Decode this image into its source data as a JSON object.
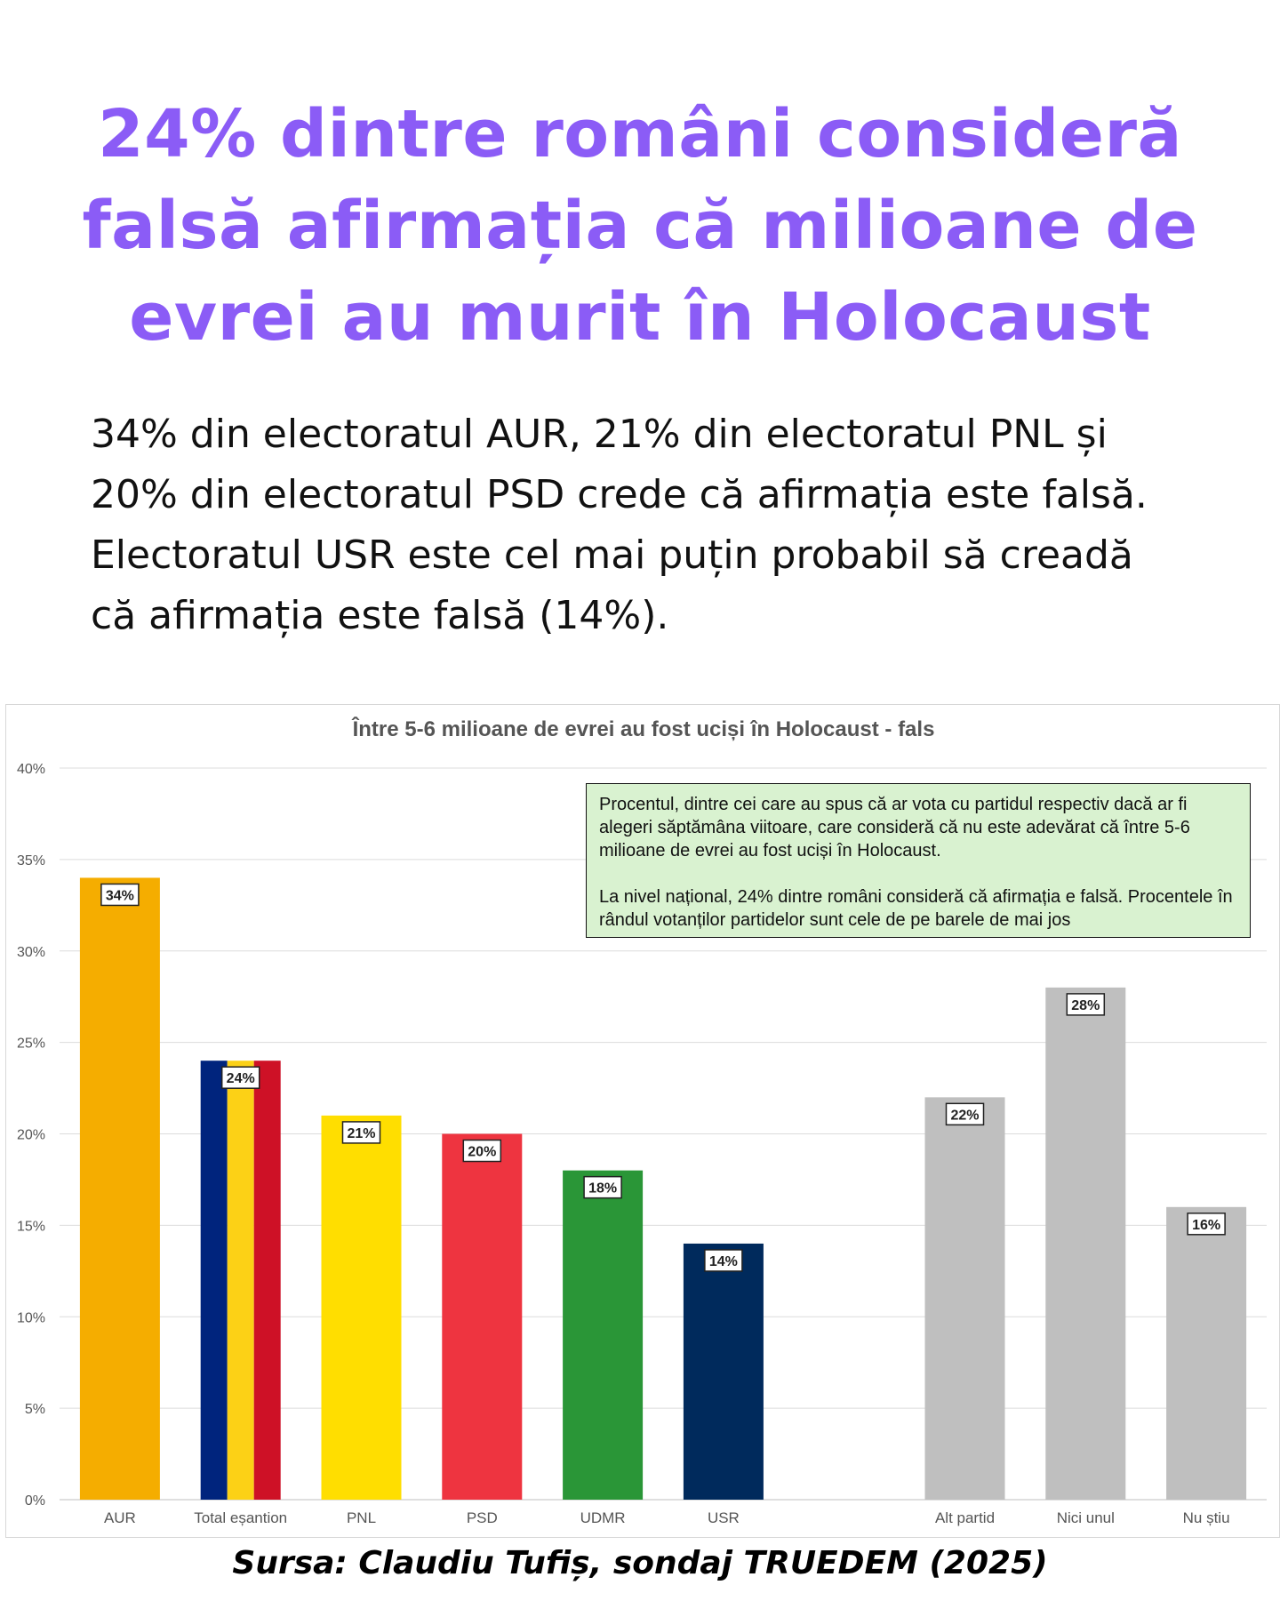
{
  "headline": "24% dintre români consideră falsă afirmația că milioane de evrei au murit în Holocaust",
  "subtext": "34% din electoratul AUR, 21% din electoratul PNL și 20% din electoratul PSD crede că afirmația este falsă. Electoratul USR este cel mai puțin probabil să creadă că afirmația este falsă (14%).",
  "note": {
    "paragraph1": "Procentul, dintre cei care au spus că ar vota cu partidul respectiv dacă ar fi alegeri săptămâna viitoare, care consideră că nu este adevărat că între 5-6 milioane de evrei au fost uciși în Holocaust.",
    "paragraph2": "La nivel național, 24% dintre români consideră că afirmația e falsă. Procentele în rândul votanților partidelor sunt cele de pe barele de mai jos"
  },
  "source": "Sursa: Claudiu Tufiș, sondaj TRUEDEM (2025)",
  "chart_data": {
    "type": "bar",
    "title": "Între 5-6 milioane de evrei au fost uciși în Holocaust - fals",
    "xlabel": "",
    "ylabel": "",
    "ylim": [
      0,
      40
    ],
    "yticks": [
      0,
      5,
      10,
      15,
      20,
      25,
      30,
      35,
      40
    ],
    "ytick_labels": [
      "0%",
      "5%",
      "10%",
      "15%",
      "20%",
      "25%",
      "30%",
      "35%",
      "40%"
    ],
    "grid": true,
    "legend": "none",
    "categories": [
      "AUR",
      "Total eșantion",
      "PNL",
      "PSD",
      "UDMR",
      "USR",
      "",
      "Alt partid",
      "Nici unul",
      "Nu știu"
    ],
    "values": [
      34,
      24,
      21,
      20,
      18,
      14,
      null,
      22,
      28,
      16
    ],
    "data_labels": [
      "34%",
      "24%",
      "21%",
      "20%",
      "18%",
      "14%",
      "",
      "22%",
      "28%",
      "16%"
    ],
    "colors": [
      "#f5ad00",
      [
        "#00247d",
        "#fcd116",
        "#ce1126"
      ],
      "#ffde00",
      "#ee3440",
      "#2a9637",
      "#002a5c",
      "",
      "#bfbfbf",
      "#bfbfbf",
      "#bfbfbf"
    ]
  }
}
